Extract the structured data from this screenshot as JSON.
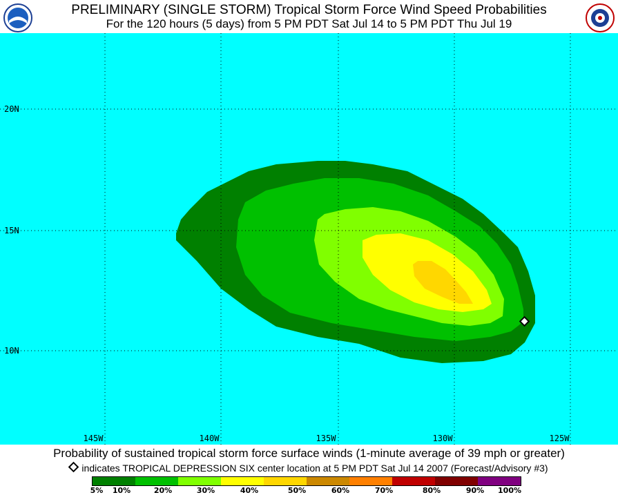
{
  "header": {
    "title": "PRELIMINARY (SINGLE STORM) Tropical Storm Force Wind Speed Probabilities",
    "subtitle": "For the 120 hours (5 days) from 5 PM PDT Sat Jul 14 to 5 PM PDT Thu Jul 19"
  },
  "map": {
    "background_color": "#00ffff",
    "lat_labels": [
      "20N",
      "15N",
      "10N"
    ],
    "lon_labels": [
      "145W",
      "140W",
      "135W",
      "130W",
      "125W"
    ],
    "contour_colors": [
      "#008000",
      "#00c000",
      "#80ff00",
      "#ffff00",
      "#ffd700"
    ]
  },
  "caption": "Probability of sustained tropical storm force surface winds (1-minute average of 39 mph or greater)",
  "note": "indicates TROPICAL DEPRESSION SIX center location at 5 PM PDT Sat Jul 14 2007 (Forecast/Advisory #3)",
  "legend": {
    "colors": [
      "#008000",
      "#00c000",
      "#80ff00",
      "#ffff00",
      "#ffd700",
      "#cc8800",
      "#ff8000",
      "#c00000",
      "#800000",
      "#800080"
    ],
    "labels": [
      "5%",
      "10%",
      "20%",
      "30%",
      "40%",
      "50%",
      "60%",
      "70%",
      "80%",
      "90%",
      "100%"
    ]
  }
}
